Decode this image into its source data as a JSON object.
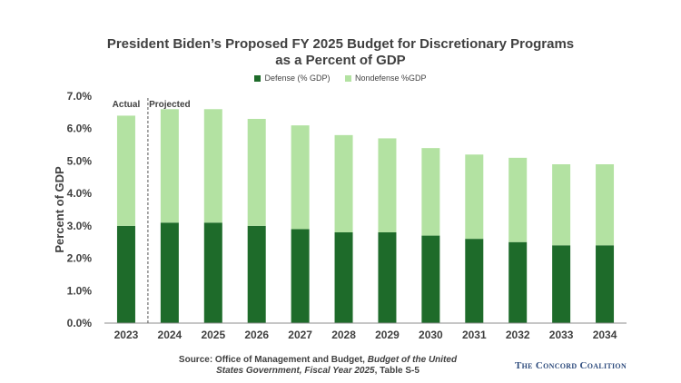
{
  "chart_data": {
    "type": "bar",
    "stacked": true,
    "title_line1": "President Biden’s Proposed FY 2025 Budget for Discretionary Programs",
    "title_line2": "as a Percent of GDP",
    "ylabel": "Percent of GDP",
    "xlabel": "",
    "ylim": [
      0,
      7
    ],
    "yticks": [
      "0.0%",
      "1.0%",
      "2.0%",
      "3.0%",
      "4.0%",
      "5.0%",
      "6.0%",
      "7.0%"
    ],
    "categories": [
      "2023",
      "2024",
      "2025",
      "2026",
      "2027",
      "2028",
      "2029",
      "2030",
      "2031",
      "2032",
      "2033",
      "2034"
    ],
    "series": [
      {
        "name": "Defense (% GDP)",
        "color": "#1e6b2a",
        "values": [
          3.0,
          3.1,
          3.1,
          3.0,
          2.9,
          2.8,
          2.8,
          2.7,
          2.6,
          2.5,
          2.4,
          2.4
        ]
      },
      {
        "name": "Nondefense %GDP",
        "color": "#b3e2a2",
        "values": [
          3.4,
          3.5,
          3.5,
          3.3,
          3.2,
          3.0,
          2.9,
          2.7,
          2.6,
          2.6,
          2.5,
          2.5
        ]
      }
    ],
    "annotations": {
      "actual": "Actual",
      "projected": "Projected"
    },
    "legend_position": "top",
    "grid": false
  },
  "source": {
    "prefix": "Source: Office of Management and Budget, ",
    "italic": "Budget of the United States Government, Fiscal Year 2025",
    "suffix": ", Table S-5"
  },
  "brand": "The Concord Coalition"
}
